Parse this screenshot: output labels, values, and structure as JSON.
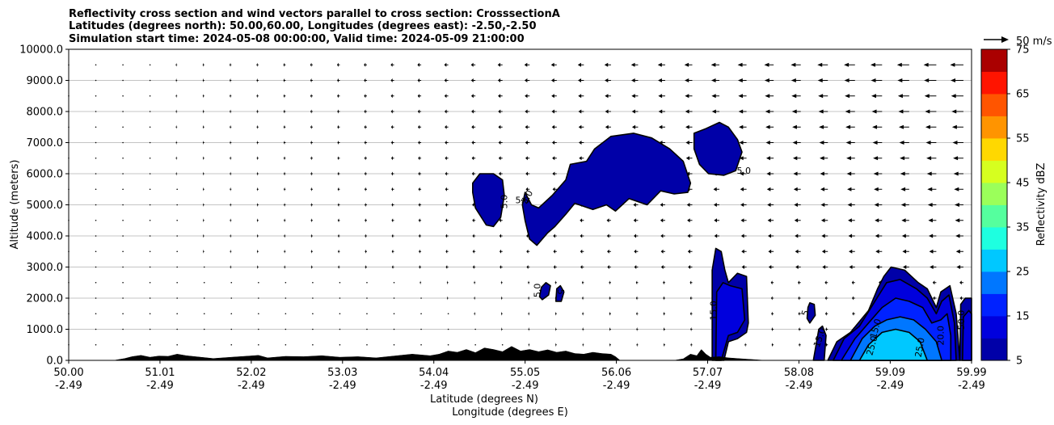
{
  "chart_data": {
    "type": "cross-section",
    "title_lines": [
      "Reflectivity cross section and wind vectors parallel to cross section: CrosssectionA",
      "Latitudes (degrees north): 50.00,60.00, Longitudes (degrees east): -2.50,-2.50",
      "Simulation start time: 2024-05-08 00:00:00, Valid time: 2024-05-09 21:00:00"
    ],
    "ylabel": "Altitude (meters)",
    "xlabel_lat": "Latitude (degrees N)",
    "xlabel_lon": "Longitude (degrees E)",
    "xlim": [
      50.0,
      59.99
    ],
    "ylim": [
      0,
      10000
    ],
    "grid": "horizontal",
    "x_ticks": [
      {
        "lat": "50.00",
        "lon": "-2.49",
        "value": 50.0
      },
      {
        "lat": "51.01",
        "lon": "-2.49",
        "value": 51.01
      },
      {
        "lat": "52.02",
        "lon": "-2.49",
        "value": 52.02
      },
      {
        "lat": "53.03",
        "lon": "-2.49",
        "value": 53.03
      },
      {
        "lat": "54.04",
        "lon": "-2.49",
        "value": 54.04
      },
      {
        "lat": "55.05",
        "lon": "-2.49",
        "value": 55.05
      },
      {
        "lat": "56.06",
        "lon": "-2.49",
        "value": 56.06
      },
      {
        "lat": "57.07",
        "lon": "-2.49",
        "value": 57.07
      },
      {
        "lat": "58.08",
        "lon": "-2.49",
        "value": 58.08
      },
      {
        "lat": "59.09",
        "lon": "-2.49",
        "value": 59.09
      },
      {
        "lat": "59.99",
        "lon": "-2.49",
        "value": 59.99
      }
    ],
    "y_ticks": [
      {
        "label": "0.0",
        "value": 0
      },
      {
        "label": "1000.0",
        "value": 1000
      },
      {
        "label": "2000.0",
        "value": 2000
      },
      {
        "label": "3000.0",
        "value": 3000
      },
      {
        "label": "4000.0",
        "value": 4000
      },
      {
        "label": "5000.0",
        "value": 5000
      },
      {
        "label": "6000.0",
        "value": 6000
      },
      {
        "label": "7000.0",
        "value": 7000
      },
      {
        "label": "8000.0",
        "value": 8000
      },
      {
        "label": "9000.0",
        "value": 9000
      },
      {
        "label": "10000.0",
        "value": 10000
      }
    ],
    "wind_reference_label": "50 m/s",
    "colorbar": {
      "label": "Reflectivity dBZ",
      "min": 5,
      "max": 75,
      "levels": [
        5,
        10,
        15,
        20,
        25,
        30,
        35,
        40,
        45,
        50,
        55,
        60,
        65,
        70,
        75
      ],
      "colors": [
        "#0000a8",
        "#0000dd",
        "#0022ff",
        "#0077ff",
        "#00c8ff",
        "#1effe0",
        "#55ff9e",
        "#9bff5a",
        "#d6ff1f",
        "#ffd800",
        "#ff9400",
        "#ff5500",
        "#ff1400",
        "#aa0000"
      ],
      "tick_labels": [
        {
          "label": "5",
          "value": 5
        },
        {
          "label": "15",
          "value": 15
        },
        {
          "label": "25",
          "value": 25
        },
        {
          "label": "35",
          "value": 35
        },
        {
          "label": "45",
          "value": 45
        },
        {
          "label": "55",
          "value": 55
        },
        {
          "label": "65",
          "value": 65
        },
        {
          "label": "75",
          "value": 75
        }
      ]
    },
    "contour_labels": [
      {
        "text": "5.0",
        "x": 54.85,
        "y": 5100,
        "rot": -90
      },
      {
        "text": "5.0",
        "x": 55.02,
        "y": 5050,
        "rot": 0
      },
      {
        "text": "5.0",
        "x": 55.1,
        "y": 5200,
        "rot": -60
      },
      {
        "text": "5.0",
        "x": 55.22,
        "y": 2250,
        "rot": -90
      },
      {
        "text": "5",
        "x": 55.41,
        "y": 2200,
        "rot": 90
      },
      {
        "text": "5.0",
        "x": 57.47,
        "y": 6000,
        "rot": 0
      },
      {
        "text": "15.0",
        "x": 57.17,
        "y": 1600,
        "rot": -90
      },
      {
        "text": "5",
        "x": 58.18,
        "y": 1500,
        "rot": -75
      },
      {
        "text": "15.0",
        "x": 58.34,
        "y": 700,
        "rot": -70
      },
      {
        "text": "15.0",
        "x": 58.96,
        "y": 1000,
        "rot": -75
      },
      {
        "text": "25.0",
        "x": 58.92,
        "y": 450,
        "rot": -75
      },
      {
        "text": "25.0",
        "x": 59.45,
        "y": 400,
        "rot": -80
      },
      {
        "text": "20.0",
        "x": 59.68,
        "y": 800,
        "rot": -90
      },
      {
        "text": "50.0",
        "x": 59.91,
        "y": 1300,
        "rot": -90
      }
    ],
    "reflectivity_regions": [
      {
        "level": 5,
        "points": [
          [
            54.47,
            5700
          ],
          [
            54.55,
            6000
          ],
          [
            54.7,
            6000
          ],
          [
            54.8,
            5800
          ],
          [
            54.82,
            5300
          ],
          [
            54.78,
            4600
          ],
          [
            54.7,
            4300
          ],
          [
            54.62,
            4350
          ],
          [
            54.5,
            4900
          ],
          [
            54.47,
            5400
          ]
        ]
      },
      {
        "level": 5,
        "points": [
          [
            55.05,
            5400
          ],
          [
            55.12,
            5000
          ],
          [
            55.2,
            4900
          ],
          [
            55.35,
            5300
          ],
          [
            55.5,
            5800
          ],
          [
            55.55,
            6300
          ],
          [
            55.73,
            6400
          ],
          [
            55.82,
            6800
          ],
          [
            56.0,
            7200
          ],
          [
            56.25,
            7300
          ],
          [
            56.45,
            7150
          ],
          [
            56.65,
            6800
          ],
          [
            56.8,
            6400
          ],
          [
            56.88,
            5700
          ],
          [
            56.85,
            5400
          ],
          [
            56.7,
            5350
          ],
          [
            56.55,
            5450
          ],
          [
            56.4,
            5000
          ],
          [
            56.2,
            5200
          ],
          [
            56.05,
            4800
          ],
          [
            55.95,
            5000
          ],
          [
            55.8,
            4850
          ],
          [
            55.6,
            5050
          ],
          [
            55.5,
            4700
          ],
          [
            55.38,
            4300
          ],
          [
            55.3,
            4100
          ],
          [
            55.18,
            3700
          ],
          [
            55.1,
            3900
          ],
          [
            55.05,
            4500
          ],
          [
            55.02,
            5000
          ]
        ]
      },
      {
        "level": 5,
        "points": [
          [
            56.92,
            7300
          ],
          [
            57.05,
            7450
          ],
          [
            57.2,
            7650
          ],
          [
            57.3,
            7500
          ],
          [
            57.4,
            7100
          ],
          [
            57.45,
            6700
          ],
          [
            57.38,
            6100
          ],
          [
            57.25,
            5950
          ],
          [
            57.08,
            6000
          ],
          [
            56.98,
            6300
          ],
          [
            56.92,
            6800
          ]
        ]
      },
      {
        "level": 5,
        "points": [
          [
            55.21,
            2050
          ],
          [
            55.23,
            2350
          ],
          [
            55.28,
            2500
          ],
          [
            55.33,
            2400
          ],
          [
            55.31,
            2100
          ],
          [
            55.24,
            1950
          ]
        ]
      },
      {
        "level": 5,
        "points": [
          [
            55.39,
            1900
          ],
          [
            55.4,
            2300
          ],
          [
            55.44,
            2400
          ],
          [
            55.48,
            2200
          ],
          [
            55.45,
            1900
          ]
        ]
      },
      {
        "level": 5,
        "points": [
          [
            57.12,
            0
          ],
          [
            57.12,
            2900
          ],
          [
            57.16,
            3600
          ],
          [
            57.22,
            3500
          ],
          [
            57.26,
            2900
          ],
          [
            57.3,
            2500
          ],
          [
            57.4,
            2800
          ],
          [
            57.5,
            2700
          ],
          [
            57.52,
            1200
          ],
          [
            57.5,
            900
          ],
          [
            57.4,
            700
          ],
          [
            57.3,
            600
          ],
          [
            57.25,
            0
          ]
        ]
      },
      {
        "level": 10,
        "points": [
          [
            57.16,
            0
          ],
          [
            57.17,
            2200
          ],
          [
            57.24,
            2500
          ],
          [
            57.32,
            2400
          ],
          [
            57.45,
            2300
          ],
          [
            57.48,
            1300
          ],
          [
            57.4,
            900
          ],
          [
            57.3,
            800
          ],
          [
            57.22,
            0
          ]
        ]
      },
      {
        "level": 5,
        "points": [
          [
            58.18,
            1700
          ],
          [
            58.2,
            1850
          ],
          [
            58.25,
            1800
          ],
          [
            58.26,
            1450
          ],
          [
            58.2,
            1200
          ],
          [
            58.17,
            1350
          ]
        ]
      },
      {
        "level": 5,
        "points": [
          [
            58.24,
            0
          ],
          [
            58.3,
            1000
          ],
          [
            58.34,
            1100
          ],
          [
            58.38,
            800
          ],
          [
            58.36,
            0
          ]
        ]
      },
      {
        "level": 5,
        "points": [
          [
            58.4,
            0
          ],
          [
            58.5,
            600
          ],
          [
            58.65,
            900
          ],
          [
            58.85,
            1600
          ],
          [
            58.95,
            2300
          ],
          [
            59.02,
            2700
          ],
          [
            59.1,
            3000
          ],
          [
            59.25,
            2900
          ],
          [
            59.4,
            2500
          ],
          [
            59.5,
            2300
          ],
          [
            59.6,
            1700
          ],
          [
            59.65,
            2200
          ],
          [
            59.75,
            2400
          ],
          [
            59.82,
            1500
          ],
          [
            59.86,
            0
          ]
        ]
      },
      {
        "level": 10,
        "points": [
          [
            58.46,
            0
          ],
          [
            58.58,
            700
          ],
          [
            58.75,
            1100
          ],
          [
            58.9,
            1800
          ],
          [
            59.05,
            2500
          ],
          [
            59.2,
            2600
          ],
          [
            59.38,
            2300
          ],
          [
            59.5,
            2000
          ],
          [
            59.6,
            1500
          ],
          [
            59.66,
            1900
          ],
          [
            59.74,
            2100
          ],
          [
            59.8,
            1200
          ],
          [
            59.82,
            0
          ]
        ]
      },
      {
        "level": 15,
        "points": [
          [
            58.55,
            0
          ],
          [
            58.7,
            700
          ],
          [
            58.85,
            1200
          ],
          [
            59.0,
            1700
          ],
          [
            59.15,
            2000
          ],
          [
            59.3,
            1900
          ],
          [
            59.45,
            1700
          ],
          [
            59.55,
            1200
          ],
          [
            59.65,
            1300
          ],
          [
            59.72,
            1500
          ],
          [
            59.76,
            800
          ],
          [
            59.76,
            0
          ]
        ]
      },
      {
        "level": 20,
        "points": [
          [
            58.65,
            0
          ],
          [
            58.78,
            700
          ],
          [
            58.92,
            1100
          ],
          [
            59.05,
            1300
          ],
          [
            59.2,
            1400
          ],
          [
            59.35,
            1300
          ],
          [
            59.48,
            1000
          ],
          [
            59.6,
            600
          ],
          [
            59.66,
            0
          ]
        ]
      },
      {
        "level": 25,
        "points": [
          [
            58.75,
            0
          ],
          [
            58.85,
            500
          ],
          [
            59.0,
            900
          ],
          [
            59.15,
            1000
          ],
          [
            59.3,
            900
          ],
          [
            59.42,
            600
          ],
          [
            59.5,
            0
          ]
        ]
      },
      {
        "level": 5,
        "points": [
          [
            59.86,
            0
          ],
          [
            59.87,
            1800
          ],
          [
            59.92,
            2000
          ],
          [
            59.99,
            2000
          ],
          [
            59.99,
            0
          ]
        ]
      },
      {
        "level": 10,
        "points": [
          [
            59.89,
            0
          ],
          [
            59.9,
            1400
          ],
          [
            59.96,
            1600
          ],
          [
            59.99,
            1500
          ],
          [
            59.99,
            0
          ]
        ]
      }
    ],
    "terrain": [
      [
        50.0,
        0
      ],
      [
        50.5,
        0
      ],
      [
        50.62,
        60
      ],
      [
        50.7,
        120
      ],
      [
        50.8,
        160
      ],
      [
        50.9,
        100
      ],
      [
        51.0,
        140
      ],
      [
        51.1,
        130
      ],
      [
        51.2,
        200
      ],
      [
        51.3,
        150
      ],
      [
        51.4,
        120
      ],
      [
        51.6,
        60
      ],
      [
        51.8,
        100
      ],
      [
        52.0,
        140
      ],
      [
        52.1,
        160
      ],
      [
        52.2,
        80
      ],
      [
        52.4,
        130
      ],
      [
        52.6,
        120
      ],
      [
        52.8,
        150
      ],
      [
        53.0,
        100
      ],
      [
        53.2,
        120
      ],
      [
        53.4,
        80
      ],
      [
        53.6,
        140
      ],
      [
        53.8,
        200
      ],
      [
        54.0,
        150
      ],
      [
        54.1,
        200
      ],
      [
        54.2,
        300
      ],
      [
        54.3,
        260
      ],
      [
        54.4,
        350
      ],
      [
        54.5,
        250
      ],
      [
        54.6,
        400
      ],
      [
        54.7,
        350
      ],
      [
        54.8,
        280
      ],
      [
        54.9,
        450
      ],
      [
        55.0,
        300
      ],
      [
        55.1,
        350
      ],
      [
        55.2,
        280
      ],
      [
        55.3,
        340
      ],
      [
        55.4,
        260
      ],
      [
        55.5,
        300
      ],
      [
        55.6,
        220
      ],
      [
        55.7,
        200
      ],
      [
        55.8,
        260
      ],
      [
        55.9,
        220
      ],
      [
        56.0,
        200
      ],
      [
        56.05,
        120
      ],
      [
        56.1,
        0
      ],
      [
        56.7,
        0
      ],
      [
        56.8,
        50
      ],
      [
        56.88,
        200
      ],
      [
        56.95,
        150
      ],
      [
        57.0,
        350
      ],
      [
        57.05,
        200
      ],
      [
        57.1,
        100
      ],
      [
        57.2,
        120
      ],
      [
        57.3,
        80
      ],
      [
        57.4,
        60
      ],
      [
        57.5,
        40
      ],
      [
        57.6,
        20
      ],
      [
        57.7,
        0
      ],
      [
        59.99,
        0
      ]
    ],
    "wind": {
      "note": "u components in m/s by row",
      "levels": [
        9500,
        9000,
        8500,
        8000,
        7500,
        7000,
        6500,
        6000,
        5500,
        5000,
        4500,
        4000,
        3500,
        3000,
        2500,
        2000,
        1500,
        1000,
        500
      ],
      "x_start": 50.0,
      "x_step": 0.3
    }
  }
}
